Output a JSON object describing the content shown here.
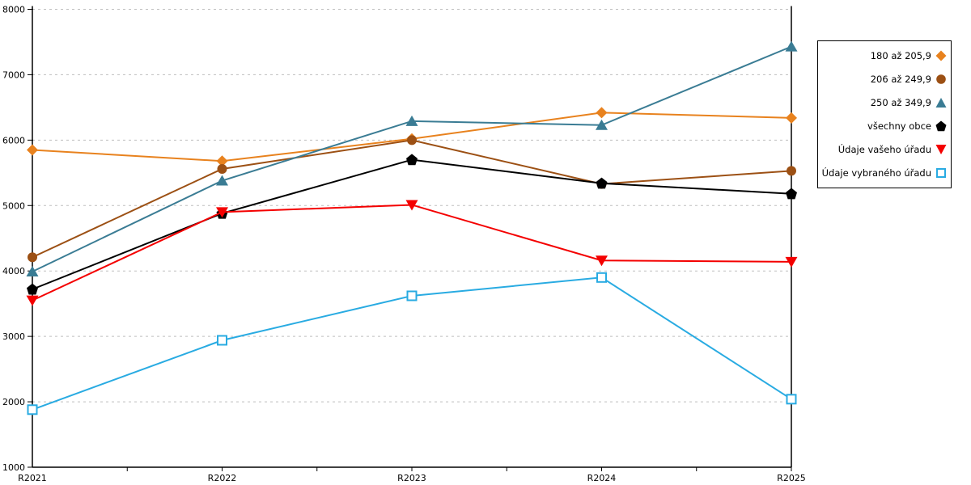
{
  "chart_data": {
    "type": "line",
    "title": "",
    "xlabel": "",
    "ylabel": "",
    "categories": [
      "R2021",
      "R2022",
      "R2023",
      "R2024",
      "R2025"
    ],
    "ylim": [
      1000,
      8000
    ],
    "yticks": [
      1000,
      2000,
      3000,
      4000,
      5000,
      6000,
      7000,
      8000
    ],
    "grid": "horizontal-dashed",
    "legend_position": "right-outside-box",
    "series": [
      {
        "name": "180 až 205,9",
        "color": "#E8821E",
        "marker": "diamond",
        "values": [
          5850,
          5680,
          6020,
          6420,
          6340
        ]
      },
      {
        "name": "206 až 249,9",
        "color": "#9C5014",
        "marker": "circle",
        "values": [
          4210,
          5560,
          6000,
          5330,
          5530
        ]
      },
      {
        "name": "250 až 349,9",
        "color": "#3A7C94",
        "marker": "triangle-up",
        "values": [
          3990,
          5380,
          6290,
          6230,
          7430
        ]
      },
      {
        "name": "všechny obce",
        "color": "#000000",
        "marker": "pentagon",
        "values": [
          3720,
          4880,
          5700,
          5340,
          5180
        ]
      },
      {
        "name": "Údaje vašeho úřadu",
        "color": "#F40000",
        "marker": "triangle-down",
        "values": [
          3550,
          4900,
          5010,
          4160,
          4140
        ]
      },
      {
        "name": "Údaje vybraného úřadu",
        "color": "#29ABE2",
        "marker": "square-open",
        "values": [
          1880,
          2940,
          3620,
          3900,
          2040
        ]
      }
    ]
  },
  "colors": {
    "axis": "#000000",
    "grid": "#BFBFBF",
    "background": "#FFFFFF",
    "text": "#000000"
  }
}
